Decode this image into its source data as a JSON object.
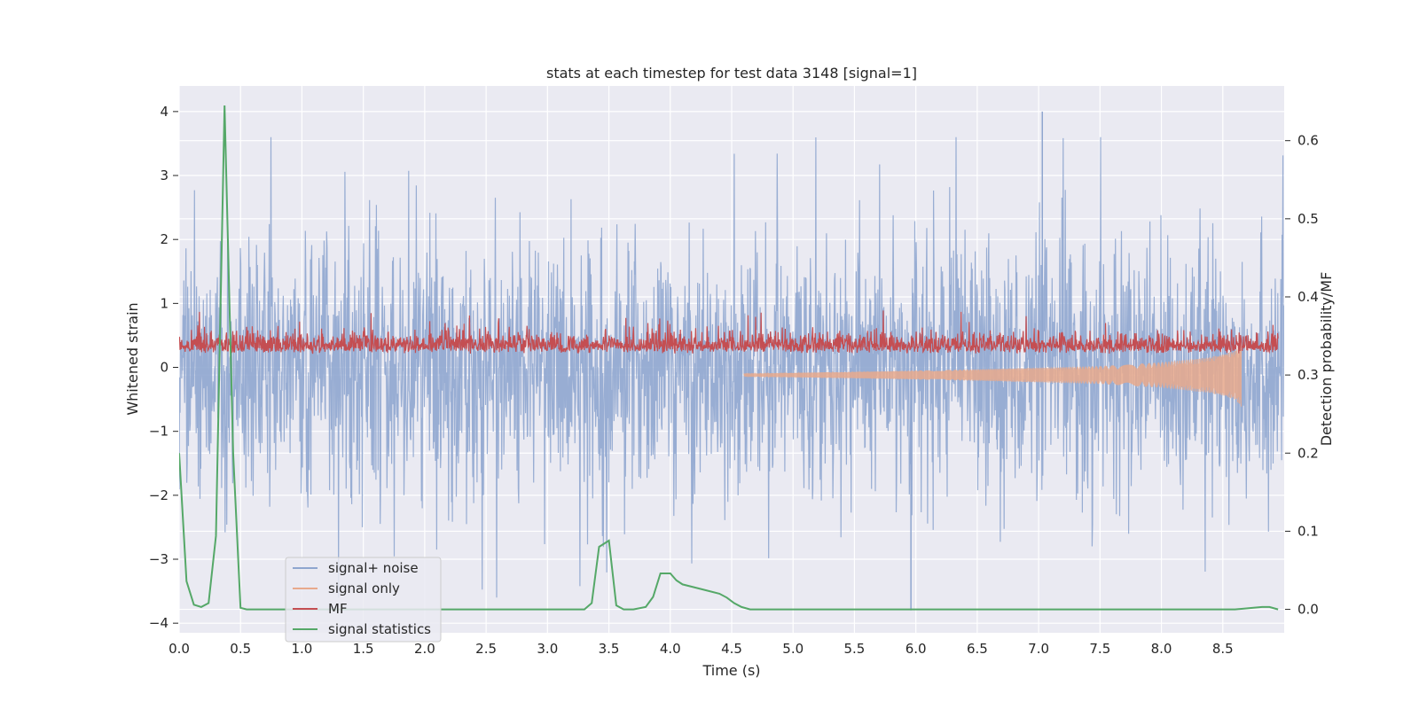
{
  "chart_data": {
    "type": "line",
    "title": "stats at each timestep for test data 3148 [signal=1]",
    "xlabel": "Time (s)",
    "ylabel": "Whitened strain",
    "ylabel_right": "Detection probability/MF",
    "xlim": [
      0,
      9.0
    ],
    "ylim": [
      -4.15,
      4.4
    ],
    "ylim_right": [
      -0.03,
      0.67
    ],
    "x_ticks": [
      "0.0",
      "0.5",
      "1.0",
      "1.5",
      "2.0",
      "2.5",
      "3.0",
      "3.5",
      "4.0",
      "4.5",
      "5.0",
      "5.5",
      "6.0",
      "6.5",
      "7.0",
      "7.5",
      "8.0",
      "8.5"
    ],
    "y_ticks": [
      "4",
      "3",
      "2",
      "1",
      "0",
      "−1",
      "−2",
      "−3",
      "−4"
    ],
    "y_ticks_right": [
      "0.6",
      "0.5",
      "0.4",
      "0.3",
      "0.2",
      "0.1",
      "0.0"
    ],
    "grid": true,
    "legend_position": "lower-left",
    "series": [
      {
        "name": "signal+ noise",
        "color": "#8fa6cf",
        "axis": "left",
        "description_values": {
          "mean": 0.0,
          "peak_max": 4.0,
          "peak_min": -3.8,
          "t_max": 7.03,
          "t_min": 5.96
        }
      },
      {
        "name": "signal only",
        "color": "#e8a98c",
        "axis": "left",
        "envelope": {
          "x": [
            4.6,
            5.5,
            6.5,
            7.5,
            8.0,
            8.4,
            8.6,
            8.65
          ],
          "amp": [
            0.02,
            0.05,
            0.09,
            0.14,
            0.2,
            0.28,
            0.38,
            0.5
          ]
        }
      },
      {
        "name": "MF",
        "color": "#c44e52",
        "axis": "left",
        "description_values": {
          "baseline": 0.25,
          "peak_max": 1.0
        }
      },
      {
        "name": "signal statistics",
        "color": "#55a868",
        "axis": "right",
        "x": [
          0.0,
          0.06,
          0.12,
          0.18,
          0.24,
          0.3,
          0.37,
          0.44,
          0.5,
          0.55,
          0.65,
          1.0,
          2.0,
          3.0,
          3.3,
          3.36,
          3.42,
          3.5,
          3.56,
          3.62,
          3.7,
          3.8,
          3.86,
          3.92,
          3.96,
          4.0,
          4.05,
          4.1,
          4.2,
          4.3,
          4.4,
          4.46,
          4.52,
          4.58,
          4.65,
          4.75,
          5.0,
          6.0,
          7.0,
          8.0,
          8.6,
          8.75,
          8.82,
          8.88,
          8.95
        ],
        "values": [
          0.2,
          0.036,
          0.006,
          0.003,
          0.008,
          0.094,
          0.645,
          0.2,
          0.002,
          0.0,
          0.0,
          0.0,
          0.0,
          0.0,
          0.0,
          0.008,
          0.08,
          0.088,
          0.005,
          0.0,
          0.0,
          0.003,
          0.016,
          0.046,
          0.046,
          0.046,
          0.037,
          0.032,
          0.028,
          0.024,
          0.02,
          0.015,
          0.008,
          0.003,
          0.0,
          0.0,
          0.0,
          0.0,
          0.0,
          0.0,
          0.0,
          0.002,
          0.003,
          0.003,
          0.0
        ]
      }
    ]
  }
}
